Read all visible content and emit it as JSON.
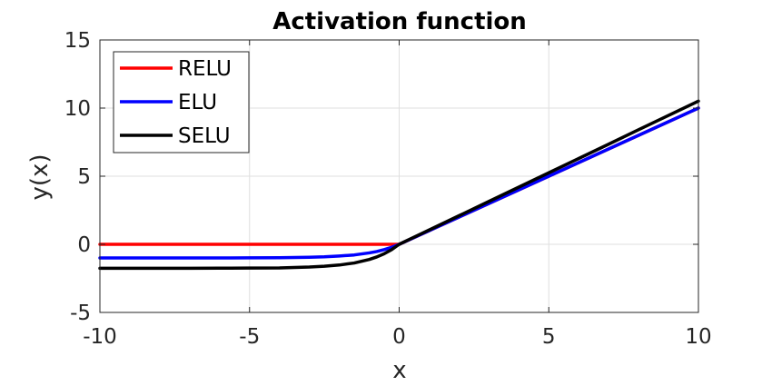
{
  "chart_data": {
    "type": "line",
    "title": "Activation function",
    "xlabel": "x",
    "ylabel": "y(x)",
    "xlim": [
      -10,
      10
    ],
    "ylim": [
      -5,
      15
    ],
    "xticks": [
      -10,
      -5,
      0,
      5,
      10
    ],
    "yticks": [
      -5,
      0,
      5,
      10,
      15
    ],
    "xtick_labels": [
      "-10",
      "-5",
      "0",
      "5",
      "10"
    ],
    "ytick_labels": [
      "-5",
      "0",
      "5",
      "10",
      "15"
    ],
    "grid": true,
    "legend_position": "top-left",
    "series": [
      {
        "name": "RELU",
        "color": "#ff0000",
        "x": [
          -10,
          -9,
          -8,
          -7,
          -6,
          -5,
          -4,
          -3,
          -2,
          -1.5,
          -1,
          -0.5,
          0,
          0.5,
          1,
          2,
          3,
          4,
          5,
          6,
          7,
          8,
          9,
          10
        ],
        "y": [
          0,
          0,
          0,
          0,
          0,
          0,
          0,
          0,
          0,
          0,
          0,
          0,
          0,
          0.5,
          1,
          2,
          3,
          4,
          5,
          6,
          7,
          8,
          9,
          10
        ]
      },
      {
        "name": "ELU",
        "color": "#0000ff",
        "x": [
          -10,
          -9,
          -8,
          -7,
          -6,
          -5,
          -4,
          -3,
          -2.5,
          -2,
          -1.5,
          -1,
          -0.75,
          -0.5,
          -0.25,
          0,
          0.5,
          1,
          2,
          3,
          4,
          5,
          6,
          7,
          8,
          9,
          10
        ],
        "y": [
          -1.0,
          -1.0,
          -1.0,
          -1.0,
          -1.0,
          -0.99,
          -0.98,
          -0.95,
          -0.92,
          -0.86,
          -0.78,
          -0.63,
          -0.53,
          -0.39,
          -0.22,
          0,
          0.5,
          1,
          2,
          3,
          4,
          5,
          6,
          7,
          8,
          9,
          10
        ]
      },
      {
        "name": "SELU",
        "color": "#000000",
        "x": [
          -10,
          -9,
          -8,
          -7,
          -6,
          -5,
          -4,
          -3,
          -2.5,
          -2,
          -1.5,
          -1,
          -0.75,
          -0.5,
          -0.25,
          0,
          0.5,
          1,
          2,
          3,
          4,
          5,
          6,
          7,
          8,
          9,
          10
        ],
        "y": [
          -1.76,
          -1.76,
          -1.76,
          -1.76,
          -1.75,
          -1.74,
          -1.73,
          -1.67,
          -1.61,
          -1.52,
          -1.37,
          -1.11,
          -0.93,
          -0.69,
          -0.39,
          0,
          0.53,
          1.05,
          2.1,
          3.15,
          4.2,
          5.25,
          6.3,
          7.35,
          8.41,
          9.46,
          10.51
        ]
      }
    ]
  }
}
